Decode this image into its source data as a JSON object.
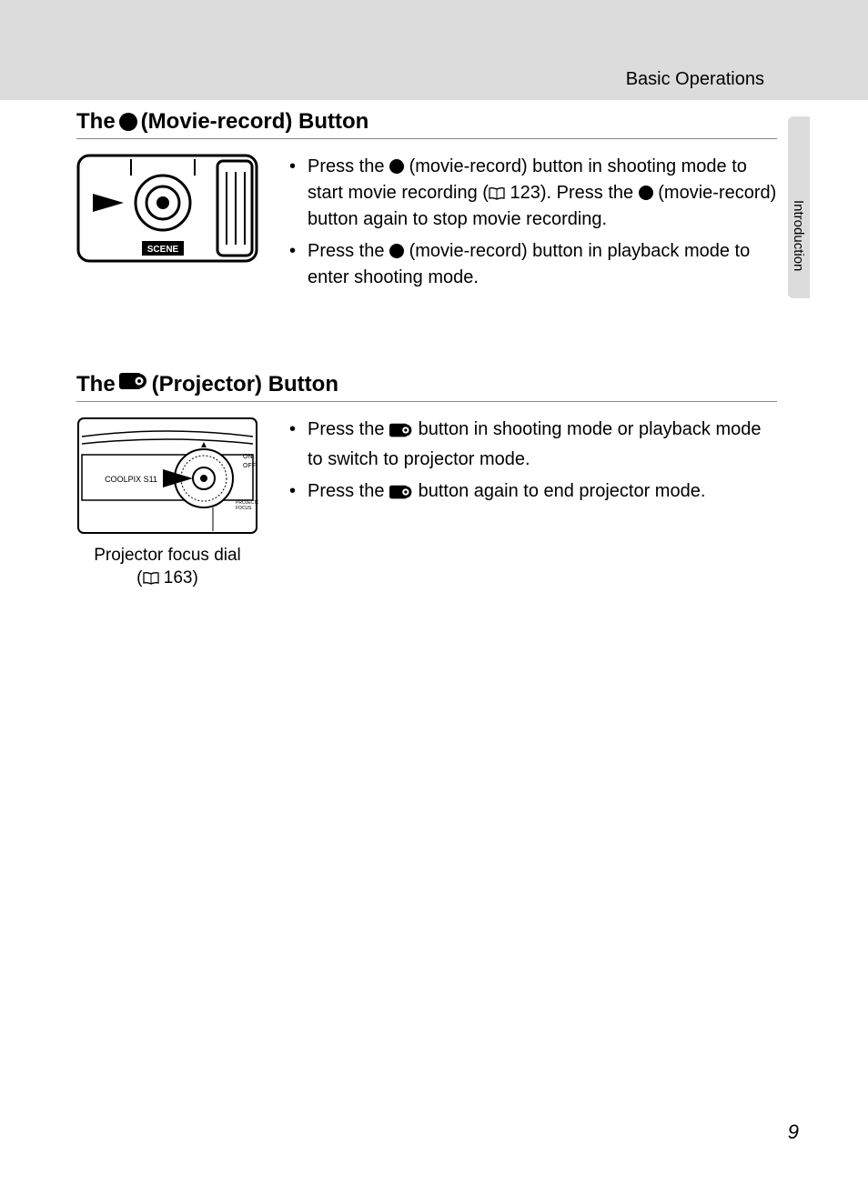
{
  "header": {
    "title": "Basic Operations"
  },
  "side_tab": {
    "label": "Introduction"
  },
  "section1": {
    "heading_pre": "The ",
    "heading_post": " (Movie-record) Button",
    "bullets": [
      {
        "parts": [
          "Press the ",
          {
            "icon": "rec"
          },
          " (movie-record) button in shooting mode to start movie recording (",
          {
            "icon": "book"
          },
          " 123). Press the ",
          {
            "icon": "rec"
          },
          " (movie-record) button again to stop movie recording."
        ]
      },
      {
        "parts": [
          "Press the ",
          {
            "icon": "rec"
          },
          " (movie-record) button in playback mode to enter shooting mode."
        ]
      }
    ],
    "diagram": {
      "scene_label": "SCENE"
    }
  },
  "section2": {
    "heading_pre": "The ",
    "heading_post": " (Projector) Button",
    "bullets": [
      {
        "parts": [
          "Press the ",
          {
            "icon": "proj"
          },
          " button in shooting mode or playback mode to switch to projector mode."
        ]
      },
      {
        "parts": [
          "Press the ",
          {
            "icon": "proj"
          },
          " button again to end projector mode."
        ]
      }
    ],
    "diagram": {
      "brand": "COOLPIX S11",
      "on_label": "ON",
      "off_label": "OFF",
      "focus_label1": "PROJECTOR",
      "focus_label2": "FOCUS",
      "caption_line1": "Projector focus dial",
      "caption_prefix": "(",
      "caption_ref": " 163)"
    }
  },
  "page_number": "9",
  "colors": {
    "gray_bg": "#dcdcdc",
    "text": "#000000",
    "white": "#ffffff"
  }
}
